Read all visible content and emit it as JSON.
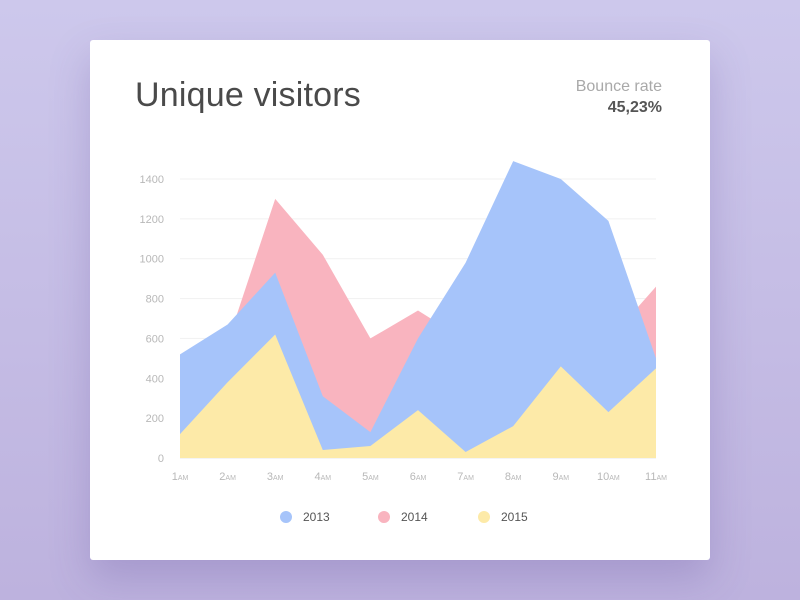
{
  "card": {
    "title": "Unique visitors",
    "metric_label": "Bounce rate",
    "metric_value": "45,23%"
  },
  "chart_data": {
    "type": "area",
    "title": "Unique visitors",
    "x": [
      "1AM",
      "2AM",
      "3AM",
      "4AM",
      "5AM",
      "6AM",
      "7AM",
      "8AM",
      "9AM",
      "10AM",
      "11AM"
    ],
    "x_ticks": [
      {
        "num": "1",
        "suffix": "AM"
      },
      {
        "num": "2",
        "suffix": "AM"
      },
      {
        "num": "3",
        "suffix": "AM"
      },
      {
        "num": "4",
        "suffix": "AM"
      },
      {
        "num": "5",
        "suffix": "AM"
      },
      {
        "num": "6",
        "suffix": "AM"
      },
      {
        "num": "7",
        "suffix": "AM"
      },
      {
        "num": "8",
        "suffix": "AM"
      },
      {
        "num": "9",
        "suffix": "AM"
      },
      {
        "num": "10",
        "suffix": "AM"
      },
      {
        "num": "11",
        "suffix": "AM"
      }
    ],
    "ylim": [
      0,
      1400
    ],
    "y_ticks": [
      0,
      200,
      400,
      600,
      800,
      1000,
      1200,
      1400
    ],
    "grid": true,
    "legend_position": "bottom",
    "series": [
      {
        "name": "2013",
        "color": "#a6c4fa",
        "values": [
          520,
          670,
          930,
          310,
          130,
          600,
          980,
          1490,
          1400,
          1190,
          500
        ]
      },
      {
        "name": "2014",
        "color": "#f9b4bf",
        "values": [
          510,
          580,
          1300,
          1020,
          600,
          740,
          590,
          570,
          700,
          590,
          860
        ]
      },
      {
        "name": "2015",
        "color": "#fdeaa8",
        "values": [
          120,
          380,
          620,
          40,
          60,
          240,
          30,
          160,
          460,
          230,
          450
        ]
      }
    ]
  }
}
